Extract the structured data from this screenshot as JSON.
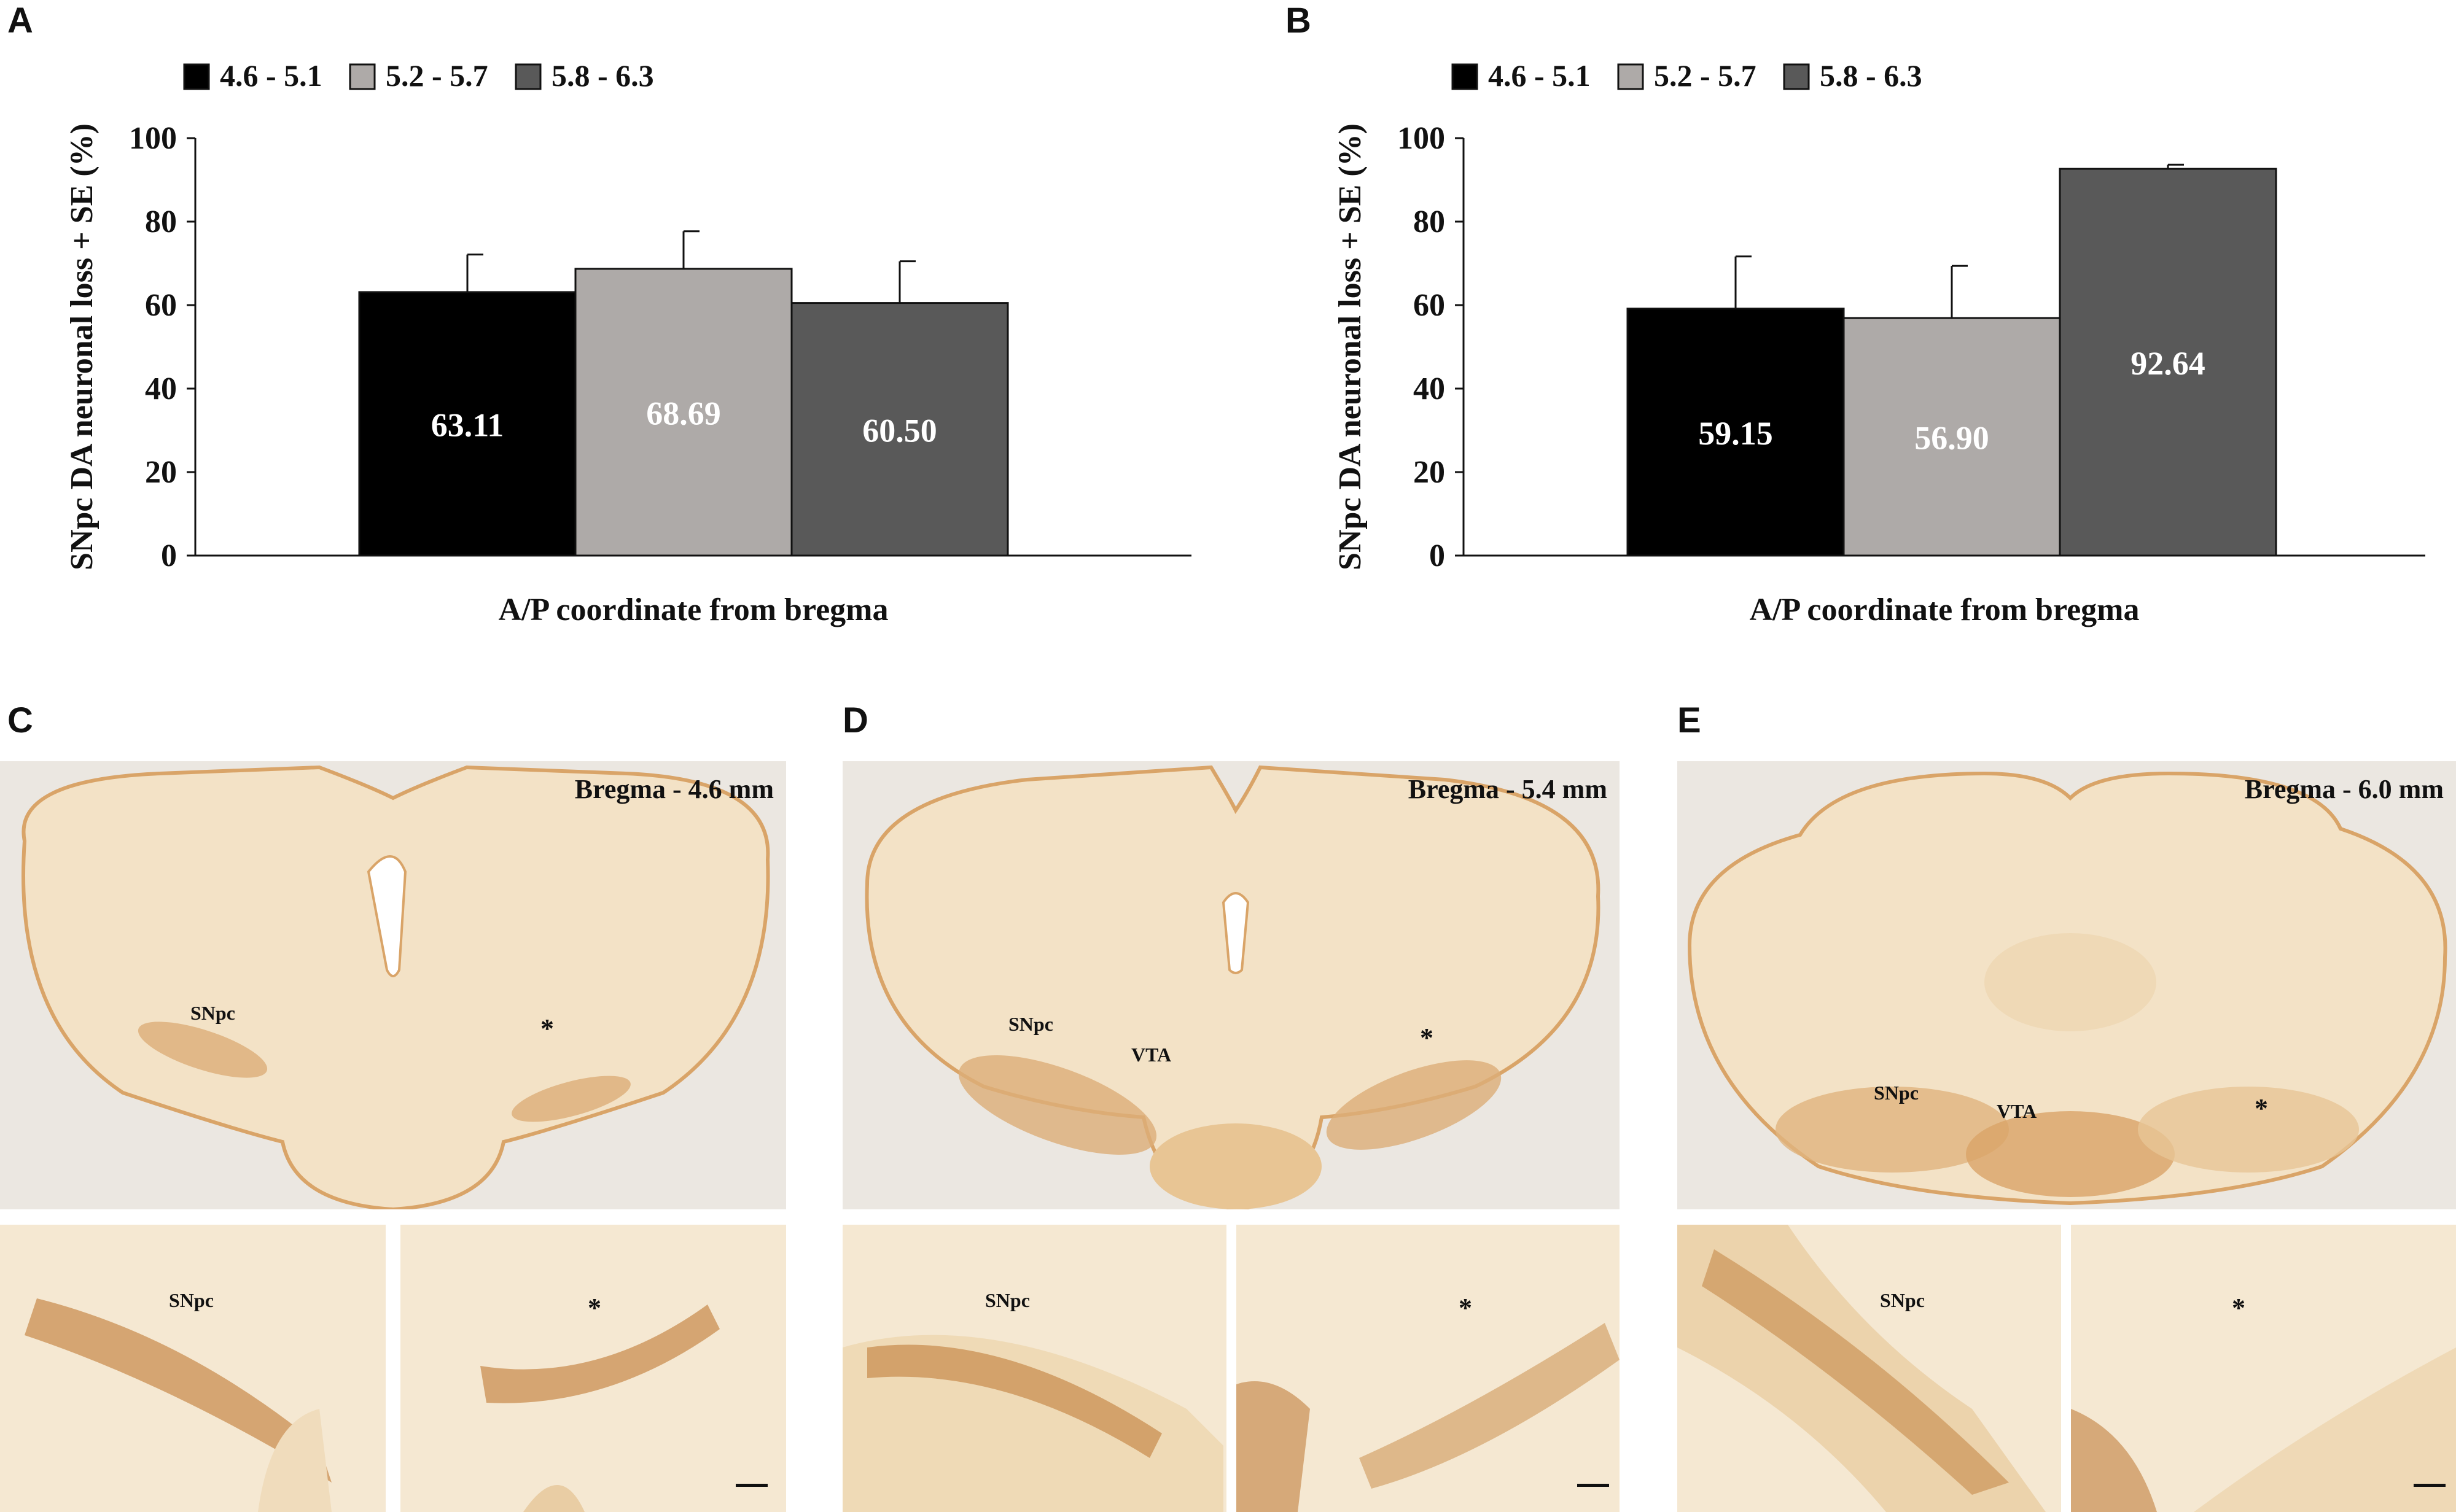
{
  "panels": {
    "A": "A",
    "B": "B",
    "C": "C",
    "D": "D",
    "E": "E"
  },
  "chart_data": [
    {
      "type": "bar",
      "panel": "A",
      "categories": [
        "4.6 - 5.1",
        "5.2 - 5.7",
        "5.8 - 6.3"
      ],
      "values": [
        63.11,
        68.69,
        60.5
      ],
      "value_labels": [
        "63.11",
        "68.69",
        "60.50"
      ],
      "errors": [
        9.0,
        9.0,
        10.0
      ],
      "colors": [
        "#000000",
        "#aeaaa8",
        "#595959"
      ],
      "label_colors": [
        "#ffffff",
        "#ffffff",
        "#ffffff"
      ],
      "title": "",
      "xlabel": "A/P coordinate from bregma",
      "ylabel": "SNpc DA neuronal loss + SE (%)",
      "ylim": [
        0,
        100
      ],
      "yticks": [
        "0",
        "20",
        "40",
        "60",
        "80",
        "100"
      ],
      "legend": [
        "4.6 - 5.1",
        "5.2 - 5.7",
        "5.8 - 6.3"
      ],
      "legend_position": "top",
      "grid": false
    },
    {
      "type": "bar",
      "panel": "B",
      "categories": [
        "4.6 - 5.1",
        "5.2 - 5.7",
        "5.8 - 6.3"
      ],
      "values": [
        59.15,
        56.9,
        92.64
      ],
      "value_labels": [
        "59.15",
        "56.90",
        "92.64"
      ],
      "errors": [
        12.5,
        12.5,
        1.0
      ],
      "colors": [
        "#000000",
        "#aeaaa8",
        "#595959"
      ],
      "label_colors": [
        "#ffffff",
        "#ffffff",
        "#ffffff"
      ],
      "title": "",
      "xlabel": "A/P coordinate from bregma",
      "ylabel": "SNpc DA neuronal loss + SE (%)",
      "ylim": [
        0,
        100
      ],
      "yticks": [
        "0",
        "20",
        "40",
        "60",
        "80",
        "100"
      ],
      "legend": [
        "4.6 - 5.1",
        "5.2 - 5.7",
        "5.8 - 6.3"
      ],
      "legend_position": "top",
      "grid": false
    }
  ],
  "micrographs": {
    "C": {
      "bregma": "Bregma - 4.6 mm",
      "snpc": "SNpc",
      "star": "*",
      "zoom_snpc": "SNpc",
      "zoom_star": "*"
    },
    "D": {
      "bregma": "Bregma - 5.4 mm",
      "snpc": "SNpc",
      "vta": "VTA",
      "star": "*",
      "zoom_snpc": "SNpc",
      "zoom_star": "*"
    },
    "E": {
      "bregma": "Bregma - 6.0 mm",
      "snpc": "SNpc",
      "vta": "VTA",
      "star": "*",
      "zoom_snpc": "SNpc",
      "zoom_star": "*"
    }
  },
  "colors": {
    "tissue": "#f3e2c6",
    "tissue_dark": "#d9a468",
    "stain": "#b5651d",
    "slide_bg": "#ece8e2"
  }
}
